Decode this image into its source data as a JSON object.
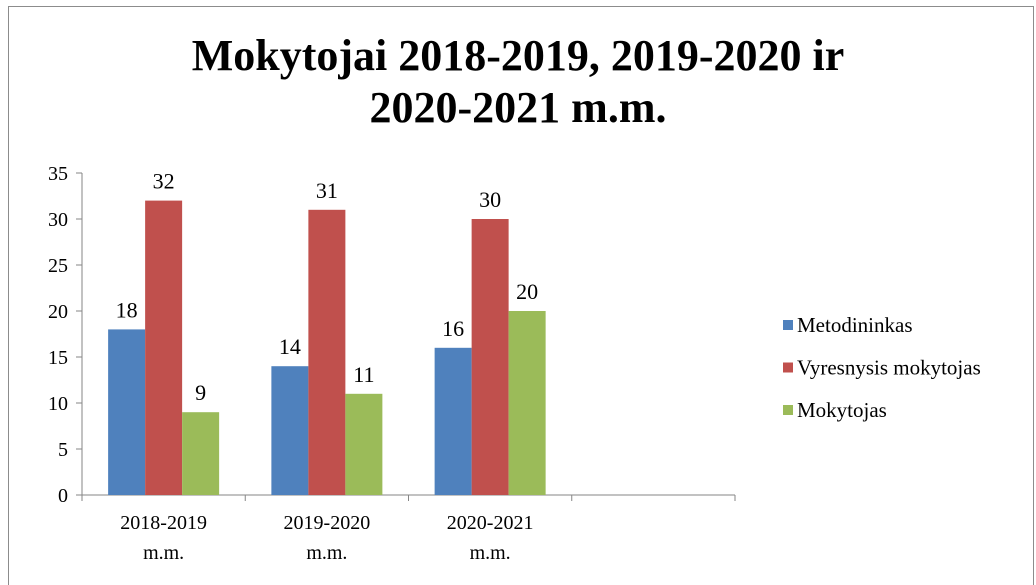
{
  "chart_data": {
    "type": "bar",
    "title": "Mokytojai 2018-2019, 2019-2020 ir 2020-2021 m.m.",
    "categories": [
      "2018-2019 m.m.",
      "2019-2020 m.m.",
      "2020-2021 m.m.",
      null
    ],
    "series": [
      {
        "name": "Metodininkas",
        "color": "#4f81bd",
        "values": [
          18,
          14,
          16,
          null
        ]
      },
      {
        "name": "Vyresnysis mokytojas",
        "color": "#c0504d",
        "values": [
          32,
          31,
          30,
          null
        ]
      },
      {
        "name": "Mokytojas",
        "color": "#9bbb59",
        "values": [
          9,
          11,
          20,
          null
        ]
      }
    ],
    "ylim": [
      0,
      35
    ],
    "yticks": [
      0,
      5,
      10,
      15,
      20,
      25,
      30,
      35
    ],
    "grid": false,
    "legend": "right",
    "data_labels": true
  }
}
